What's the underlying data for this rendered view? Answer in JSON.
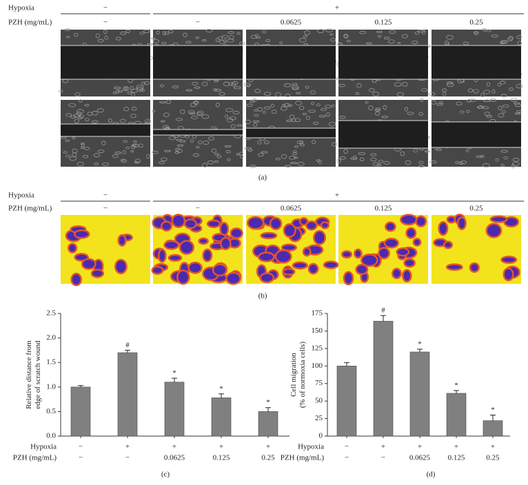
{
  "panel_a": {
    "header_rows": [
      {
        "label": "Hypoxia",
        "values": [
          "−",
          "+"
        ]
      },
      {
        "label": "PZH (mg/mL)",
        "values": [
          "−",
          "−",
          "0.0625",
          "0.125",
          "0.25"
        ]
      }
    ],
    "label": "(a)"
  },
  "panel_b": {
    "header_rows": [
      {
        "label": "Hypoxia",
        "values": [
          "−",
          "+"
        ]
      },
      {
        "label": "PZH (mg/mL)",
        "values": [
          "−",
          "−",
          "0.0625",
          "0.125",
          "0.25"
        ]
      }
    ],
    "label": "(b)"
  },
  "chart_data": [
    {
      "type": "bar",
      "ylabel": [
        "Relative distance from",
        "edge of scratch wound"
      ],
      "values": [
        1.0,
        1.7,
        1.1,
        0.78,
        0.5
      ],
      "errors": [
        0.03,
        0.05,
        0.08,
        0.08,
        0.08
      ],
      "annotations": [
        null,
        "#",
        "*",
        "*",
        "*"
      ],
      "color": "#808080",
      "ylim": [
        0,
        2.5
      ],
      "yticks": [
        {
          "value": 0,
          "label": "0.0"
        },
        0.5,
        {
          "value": 1,
          "label": "1.0"
        },
        1.5,
        {
          "value": 2,
          "label": "2.0"
        },
        2.5
      ],
      "row_labels": [
        {
          "label": "Hypoxia",
          "values": [
            "−",
            "+",
            "+",
            "+",
            "+"
          ]
        },
        {
          "label": "PZH (mg/mL)",
          "values": [
            "−",
            "−",
            "0.0625",
            "0.125",
            "0.25"
          ]
        }
      ],
      "panel_label": "(c)"
    },
    {
      "type": "bar",
      "ylabel": [
        "Cell migration",
        "(% of normoxia cells)"
      ],
      "values": [
        100,
        164,
        120,
        61,
        22
      ],
      "errors": [
        5,
        8,
        4,
        4,
        8
      ],
      "annotations": [
        null,
        "#",
        "*",
        "*",
        "*"
      ],
      "color": "#808080",
      "ylim": [
        0,
        175
      ],
      "yticks": [
        0,
        25,
        50,
        75,
        100,
        125,
        150,
        175
      ],
      "row_labels": [
        {
          "label": "Hypoxia",
          "values": [
            "−",
            "+",
            "+",
            "+",
            "+"
          ]
        },
        {
          "label": "PZH (mg/mL)",
          "values": [
            "−",
            "−",
            "0.0625",
            "0.125",
            "0.25"
          ]
        }
      ],
      "panel_label": "(d)"
    }
  ]
}
